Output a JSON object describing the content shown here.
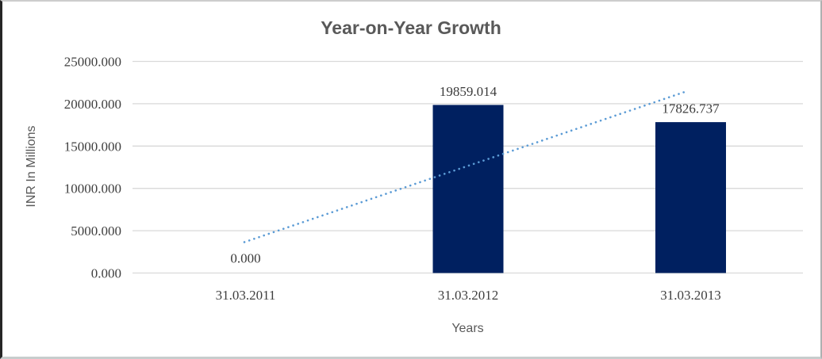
{
  "chart_data": {
    "type": "bar",
    "title": "Year-on-Year Growth",
    "xlabel": "Years",
    "ylabel": "INR In Millions",
    "categories": [
      "31.03.2011",
      "31.03.2012",
      "31.03.2013"
    ],
    "values": [
      0,
      19859.014,
      17826.737
    ],
    "data_labels": [
      "0.000",
      "19859.014",
      "17826.737"
    ],
    "y_ticks": [
      {
        "value": 0,
        "label": "0.000"
      },
      {
        "value": 5000,
        "label": "5000.000"
      },
      {
        "value": 10000,
        "label": "10000.000"
      },
      {
        "value": 15000,
        "label": "15000.000"
      },
      {
        "value": 20000,
        "label": "20000.000"
      },
      {
        "value": 25000,
        "label": "25000.000"
      }
    ],
    "ylim": [
      0,
      25000
    ],
    "grid": true,
    "legend": "none",
    "trendline": {
      "type": "linear",
      "style": "dotted",
      "end_values": [
        3648.5,
        21475.3
      ]
    },
    "colors": {
      "bar": "#002060",
      "trendline": "#5B9BD5",
      "gridline": "#D9D9D9",
      "tick_text": "#404040",
      "data_label_text": "#3b3b3b",
      "title_text": "#595959",
      "axis_title_text": "#595959"
    }
  }
}
